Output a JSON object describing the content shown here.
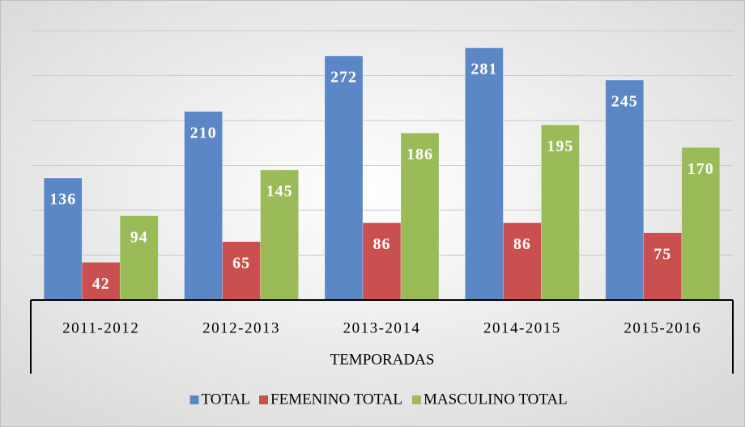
{
  "chart_data": {
    "type": "bar",
    "x_label": "TEMPORADAS",
    "categories": [
      "2011-2012",
      "2012-2013",
      "2013-2014",
      "2014-2015",
      "2015-2016"
    ],
    "series": [
      {
        "name": "TOTAL",
        "color": "#5b87c6",
        "values": [
          136,
          210,
          272,
          281,
          245
        ]
      },
      {
        "name": "FEMENINO TOTAL",
        "color": "#c9504e",
        "values": [
          42,
          65,
          86,
          86,
          75
        ]
      },
      {
        "name": "MASCULINO TOTAL",
        "color": "#9bbb59",
        "values": [
          94,
          145,
          186,
          195,
          170
        ]
      }
    ],
    "ylim": [
      0,
      300
    ],
    "yticks": [
      0,
      50,
      100,
      150,
      200,
      250,
      300
    ],
    "grid": true,
    "legend": "bottom"
  }
}
